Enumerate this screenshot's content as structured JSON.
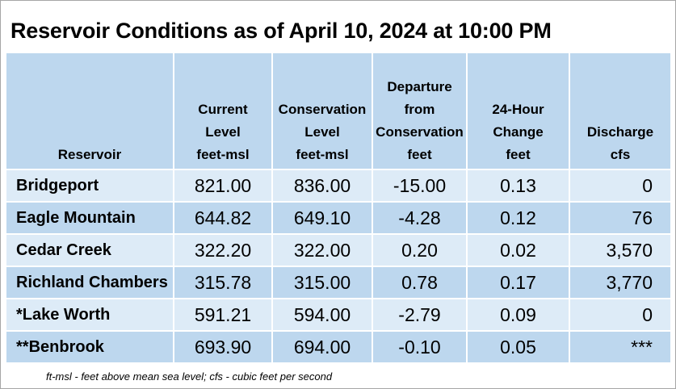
{
  "title": "Reservoir Conditions as of April 10, 2024 at 10:00 PM",
  "table": {
    "headers": [
      {
        "lines": [
          "Reservoir"
        ]
      },
      {
        "lines": [
          "Current",
          "Level",
          "feet-msl"
        ]
      },
      {
        "lines": [
          "Conservation",
          "Level",
          "feet-msl"
        ]
      },
      {
        "lines": [
          "Departure",
          "from",
          "Conservation",
          "feet"
        ]
      },
      {
        "lines": [
          "24-Hour",
          "Change",
          "feet"
        ]
      },
      {
        "lines": [
          "Discharge",
          "cfs"
        ]
      }
    ],
    "rows": [
      {
        "name": "Bridgeport",
        "current": "821.00",
        "conservation": "836.00",
        "departure": "-15.00",
        "change": "0.13",
        "discharge": "0"
      },
      {
        "name": "Eagle Mountain",
        "current": "644.82",
        "conservation": "649.10",
        "departure": "-4.28",
        "change": "0.12",
        "discharge": "76"
      },
      {
        "name": "Cedar Creek",
        "current": "322.20",
        "conservation": "322.00",
        "departure": "0.20",
        "change": "0.02",
        "discharge": "3,570"
      },
      {
        "name": "Richland Chambers",
        "current": "315.78",
        "conservation": "315.00",
        "departure": "0.78",
        "change": "0.17",
        "discharge": "3,770"
      },
      {
        "name": "*Lake Worth",
        "current": "591.21",
        "conservation": "594.00",
        "departure": "-2.79",
        "change": "0.09",
        "discharge": "0"
      },
      {
        "name": "**Benbrook",
        "current": "693.90",
        "conservation": "694.00",
        "departure": "-0.10",
        "change": "0.05",
        "discharge": "***"
      }
    ]
  },
  "footnote": "ft-msl - feet above mean sea level; cfs - cubic feet per second",
  "colors": {
    "header_bg": "#bdd7ee",
    "row_light": "#ddebf7",
    "row_dark": "#bdd7ee"
  }
}
